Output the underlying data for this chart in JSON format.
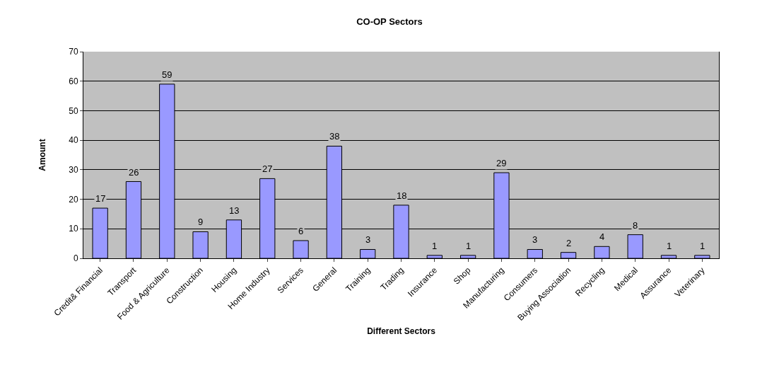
{
  "chart_data": {
    "type": "bar",
    "title": "CO-OP Sectors",
    "xlabel": "Different Sectors",
    "ylabel": "Amount",
    "categories": [
      "Credit& Financial",
      "Transport",
      "Food & Agriculture",
      "Construction",
      "Housing",
      "Home Industry",
      "Services",
      "General",
      "Training",
      "Trading",
      "Insurance",
      "Shop",
      "Manufacturing",
      "Consumers",
      "Buying Association",
      "Recycling",
      "Medical",
      "Assurance",
      "Veterinary"
    ],
    "values": [
      17,
      26,
      59,
      9,
      13,
      27,
      6,
      38,
      3,
      18,
      1,
      1,
      29,
      3,
      2,
      4,
      8,
      1,
      1
    ],
    "color": "#9999ff",
    "ylim": [
      0,
      70
    ],
    "yticks": [
      0,
      10,
      20,
      30,
      40,
      50,
      60,
      70
    ],
    "grid": "y",
    "data_labels": true
  }
}
